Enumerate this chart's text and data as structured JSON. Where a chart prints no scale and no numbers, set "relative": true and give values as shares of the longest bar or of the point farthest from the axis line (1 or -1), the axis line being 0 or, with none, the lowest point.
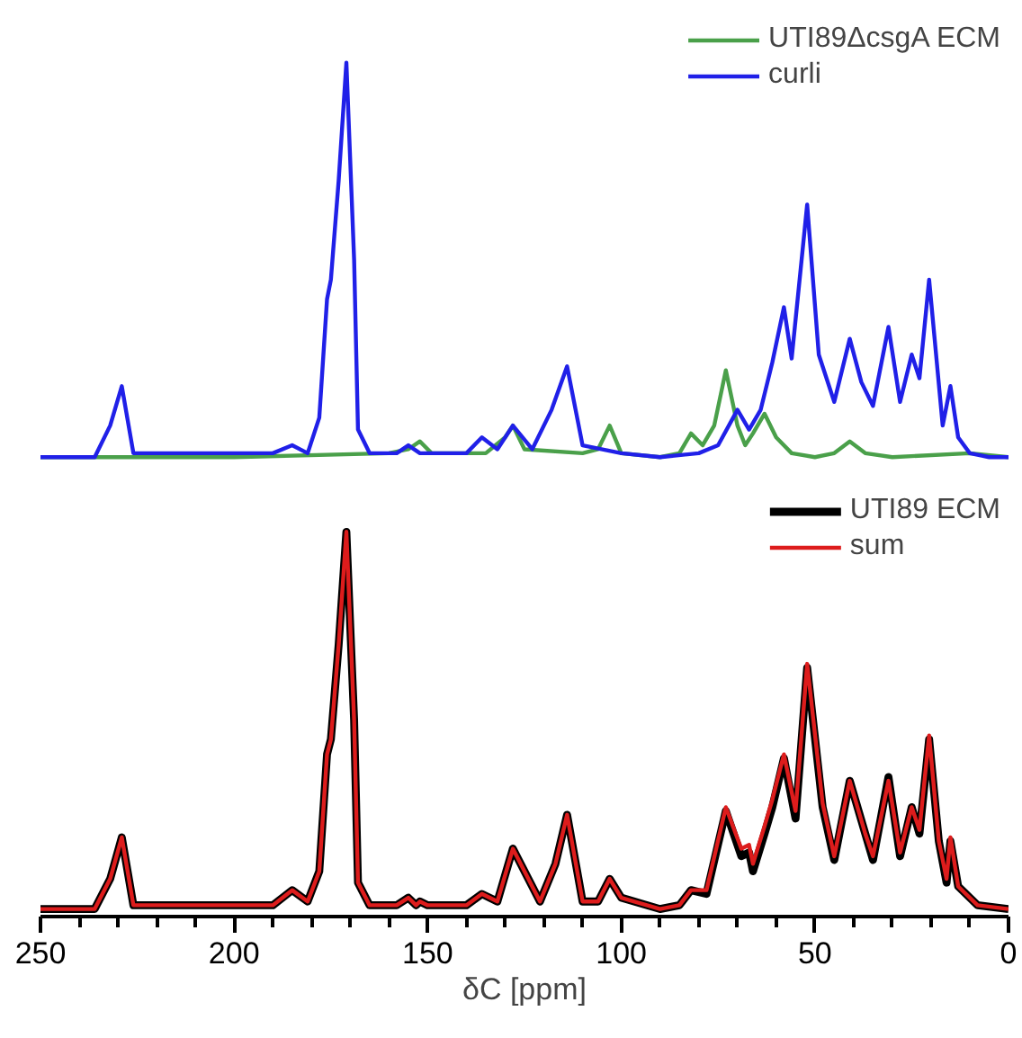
{
  "chart_data": [
    {
      "type": "line",
      "relative": true,
      "xlim": [
        250,
        0
      ],
      "tick_labels": false,
      "legend": "top right",
      "grid": false,
      "series": [
        {
          "name": "UTI89ΔcsgA ECM",
          "color": "#4aa04a",
          "x": [
            250,
            200,
            160,
            155,
            152,
            149,
            135,
            130,
            128,
            125,
            110,
            106,
            103,
            100,
            90,
            85,
            82,
            79,
            76,
            73,
            70,
            68,
            66,
            63,
            60,
            56,
            50,
            45,
            41,
            37,
            30,
            10,
            0
          ],
          "values": [
            0,
            0,
            0.01,
            0.02,
            0.04,
            0.01,
            0.01,
            0.05,
            0.08,
            0.02,
            0.01,
            0.02,
            0.08,
            0.01,
            0,
            0.01,
            0.06,
            0.03,
            0.08,
            0.22,
            0.08,
            0.03,
            0.06,
            0.11,
            0.05,
            0.01,
            0,
            0.01,
            0.04,
            0.01,
            0,
            0.01,
            0
          ]
        },
        {
          "name": "curli",
          "color": "#2020e8",
          "x": [
            250,
            236,
            232,
            229,
            226,
            215,
            190,
            185,
            181,
            178,
            176,
            175,
            173,
            171,
            169,
            168,
            165,
            158,
            155,
            152,
            140,
            136,
            132,
            128,
            123,
            118,
            114,
            110,
            100,
            90,
            80,
            75,
            70,
            67,
            64,
            61,
            58,
            56,
            52,
            49,
            45,
            41,
            38,
            35,
            31,
            28,
            25,
            23,
            20.5,
            17,
            15,
            13,
            10,
            5,
            0
          ],
          "values": [
            0,
            0,
            0.08,
            0.18,
            0.01,
            0.01,
            0.01,
            0.03,
            0.01,
            0.1,
            0.4,
            0.45,
            0.7,
            1.0,
            0.5,
            0.07,
            0.01,
            0.01,
            0.03,
            0.01,
            0.01,
            0.05,
            0.02,
            0.08,
            0.02,
            0.12,
            0.23,
            0.03,
            0.01,
            0,
            0.01,
            0.03,
            0.12,
            0.07,
            0.12,
            0.24,
            0.38,
            0.25,
            0.64,
            0.26,
            0.14,
            0.3,
            0.19,
            0.13,
            0.33,
            0.14,
            0.26,
            0.2,
            0.45,
            0.08,
            0.18,
            0.05,
            0.01,
            0,
            0
          ]
        }
      ]
    },
    {
      "type": "line",
      "relative": true,
      "xlim": [
        250,
        0
      ],
      "tick_labels": "x",
      "legend": "top right",
      "grid": false,
      "xlabel": "δC [ppm]",
      "xticks": [
        250,
        {
          "value": 240,
          "label": null
        },
        {
          "value": 230,
          "label": null
        },
        {
          "value": 220,
          "label": null
        },
        {
          "value": 210,
          "label": null
        },
        200,
        {
          "value": 190,
          "label": null
        },
        {
          "value": 180,
          "label": null
        },
        {
          "value": 170,
          "label": null
        },
        {
          "value": 160,
          "label": null
        },
        150,
        {
          "value": 140,
          "label": null
        },
        {
          "value": 130,
          "label": null
        },
        {
          "value": 120,
          "label": null
        },
        {
          "value": 110,
          "label": null
        },
        100,
        {
          "value": 90,
          "label": null
        },
        {
          "value": 80,
          "label": null
        },
        {
          "value": 70,
          "label": null
        },
        {
          "value": 60,
          "label": null
        },
        50,
        {
          "value": 40,
          "label": null
        },
        {
          "value": 30,
          "label": null
        },
        {
          "value": 20,
          "label": null
        },
        {
          "value": 10,
          "label": null
        },
        0
      ],
      "series": [
        {
          "name": "UTI89 ECM",
          "color": "#000000",
          "x": [
            250,
            236,
            232,
            229,
            226,
            215,
            190,
            185,
            181,
            178,
            176,
            175,
            173,
            171,
            169,
            168,
            165,
            158,
            155,
            153,
            152,
            150,
            140,
            136,
            132,
            128,
            121,
            117,
            114,
            110,
            106,
            103,
            100,
            90,
            85,
            82,
            78,
            73,
            69,
            67,
            66,
            63,
            61,
            58,
            55,
            52,
            48,
            45,
            41,
            37,
            35,
            31,
            28,
            25,
            23,
            20.5,
            18,
            16,
            15,
            13,
            8,
            0
          ],
          "values": [
            0,
            0,
            0.08,
            0.19,
            0.01,
            0.01,
            0.01,
            0.05,
            0.02,
            0.1,
            0.41,
            0.45,
            0.7,
            1.0,
            0.5,
            0.07,
            0.01,
            0.01,
            0.03,
            0.01,
            0.02,
            0.01,
            0.01,
            0.04,
            0.02,
            0.16,
            0.02,
            0.12,
            0.25,
            0.02,
            0.02,
            0.08,
            0.03,
            0,
            0.01,
            0.05,
            0.04,
            0.26,
            0.14,
            0.15,
            0.1,
            0.2,
            0.27,
            0.4,
            0.24,
            0.64,
            0.27,
            0.13,
            0.34,
            0.2,
            0.13,
            0.35,
            0.14,
            0.27,
            0.2,
            0.45,
            0.18,
            0.07,
            0.18,
            0.06,
            0.01,
            0
          ]
        },
        {
          "name": "sum",
          "color": "#dd1c1c",
          "x": [
            250,
            236,
            232,
            229,
            226,
            215,
            190,
            185,
            181,
            178,
            176,
            175,
            173,
            171,
            169,
            168,
            165,
            158,
            155,
            153,
            152,
            150,
            140,
            136,
            132,
            128,
            121,
            117,
            114,
            110,
            106,
            103,
            100,
            90,
            85,
            82,
            78,
            73,
            69,
            67,
            66,
            63,
            61,
            58,
            55,
            52,
            48,
            45,
            41,
            37,
            35,
            31,
            28,
            25,
            23,
            20.5,
            18,
            16,
            15,
            13,
            8,
            0
          ],
          "values": [
            0,
            0,
            0.08,
            0.19,
            0.01,
            0.01,
            0.01,
            0.05,
            0.02,
            0.1,
            0.41,
            0.45,
            0.7,
            1.0,
            0.5,
            0.07,
            0.01,
            0.01,
            0.03,
            0.01,
            0.02,
            0.01,
            0.01,
            0.04,
            0.02,
            0.16,
            0.02,
            0.12,
            0.25,
            0.02,
            0.02,
            0.08,
            0.03,
            0,
            0.01,
            0.05,
            0.05,
            0.27,
            0.16,
            0.17,
            0.12,
            0.22,
            0.29,
            0.41,
            0.26,
            0.65,
            0.28,
            0.14,
            0.34,
            0.2,
            0.14,
            0.34,
            0.15,
            0.27,
            0.21,
            0.46,
            0.18,
            0.08,
            0.19,
            0.06,
            0.01,
            0
          ]
        }
      ]
    }
  ]
}
